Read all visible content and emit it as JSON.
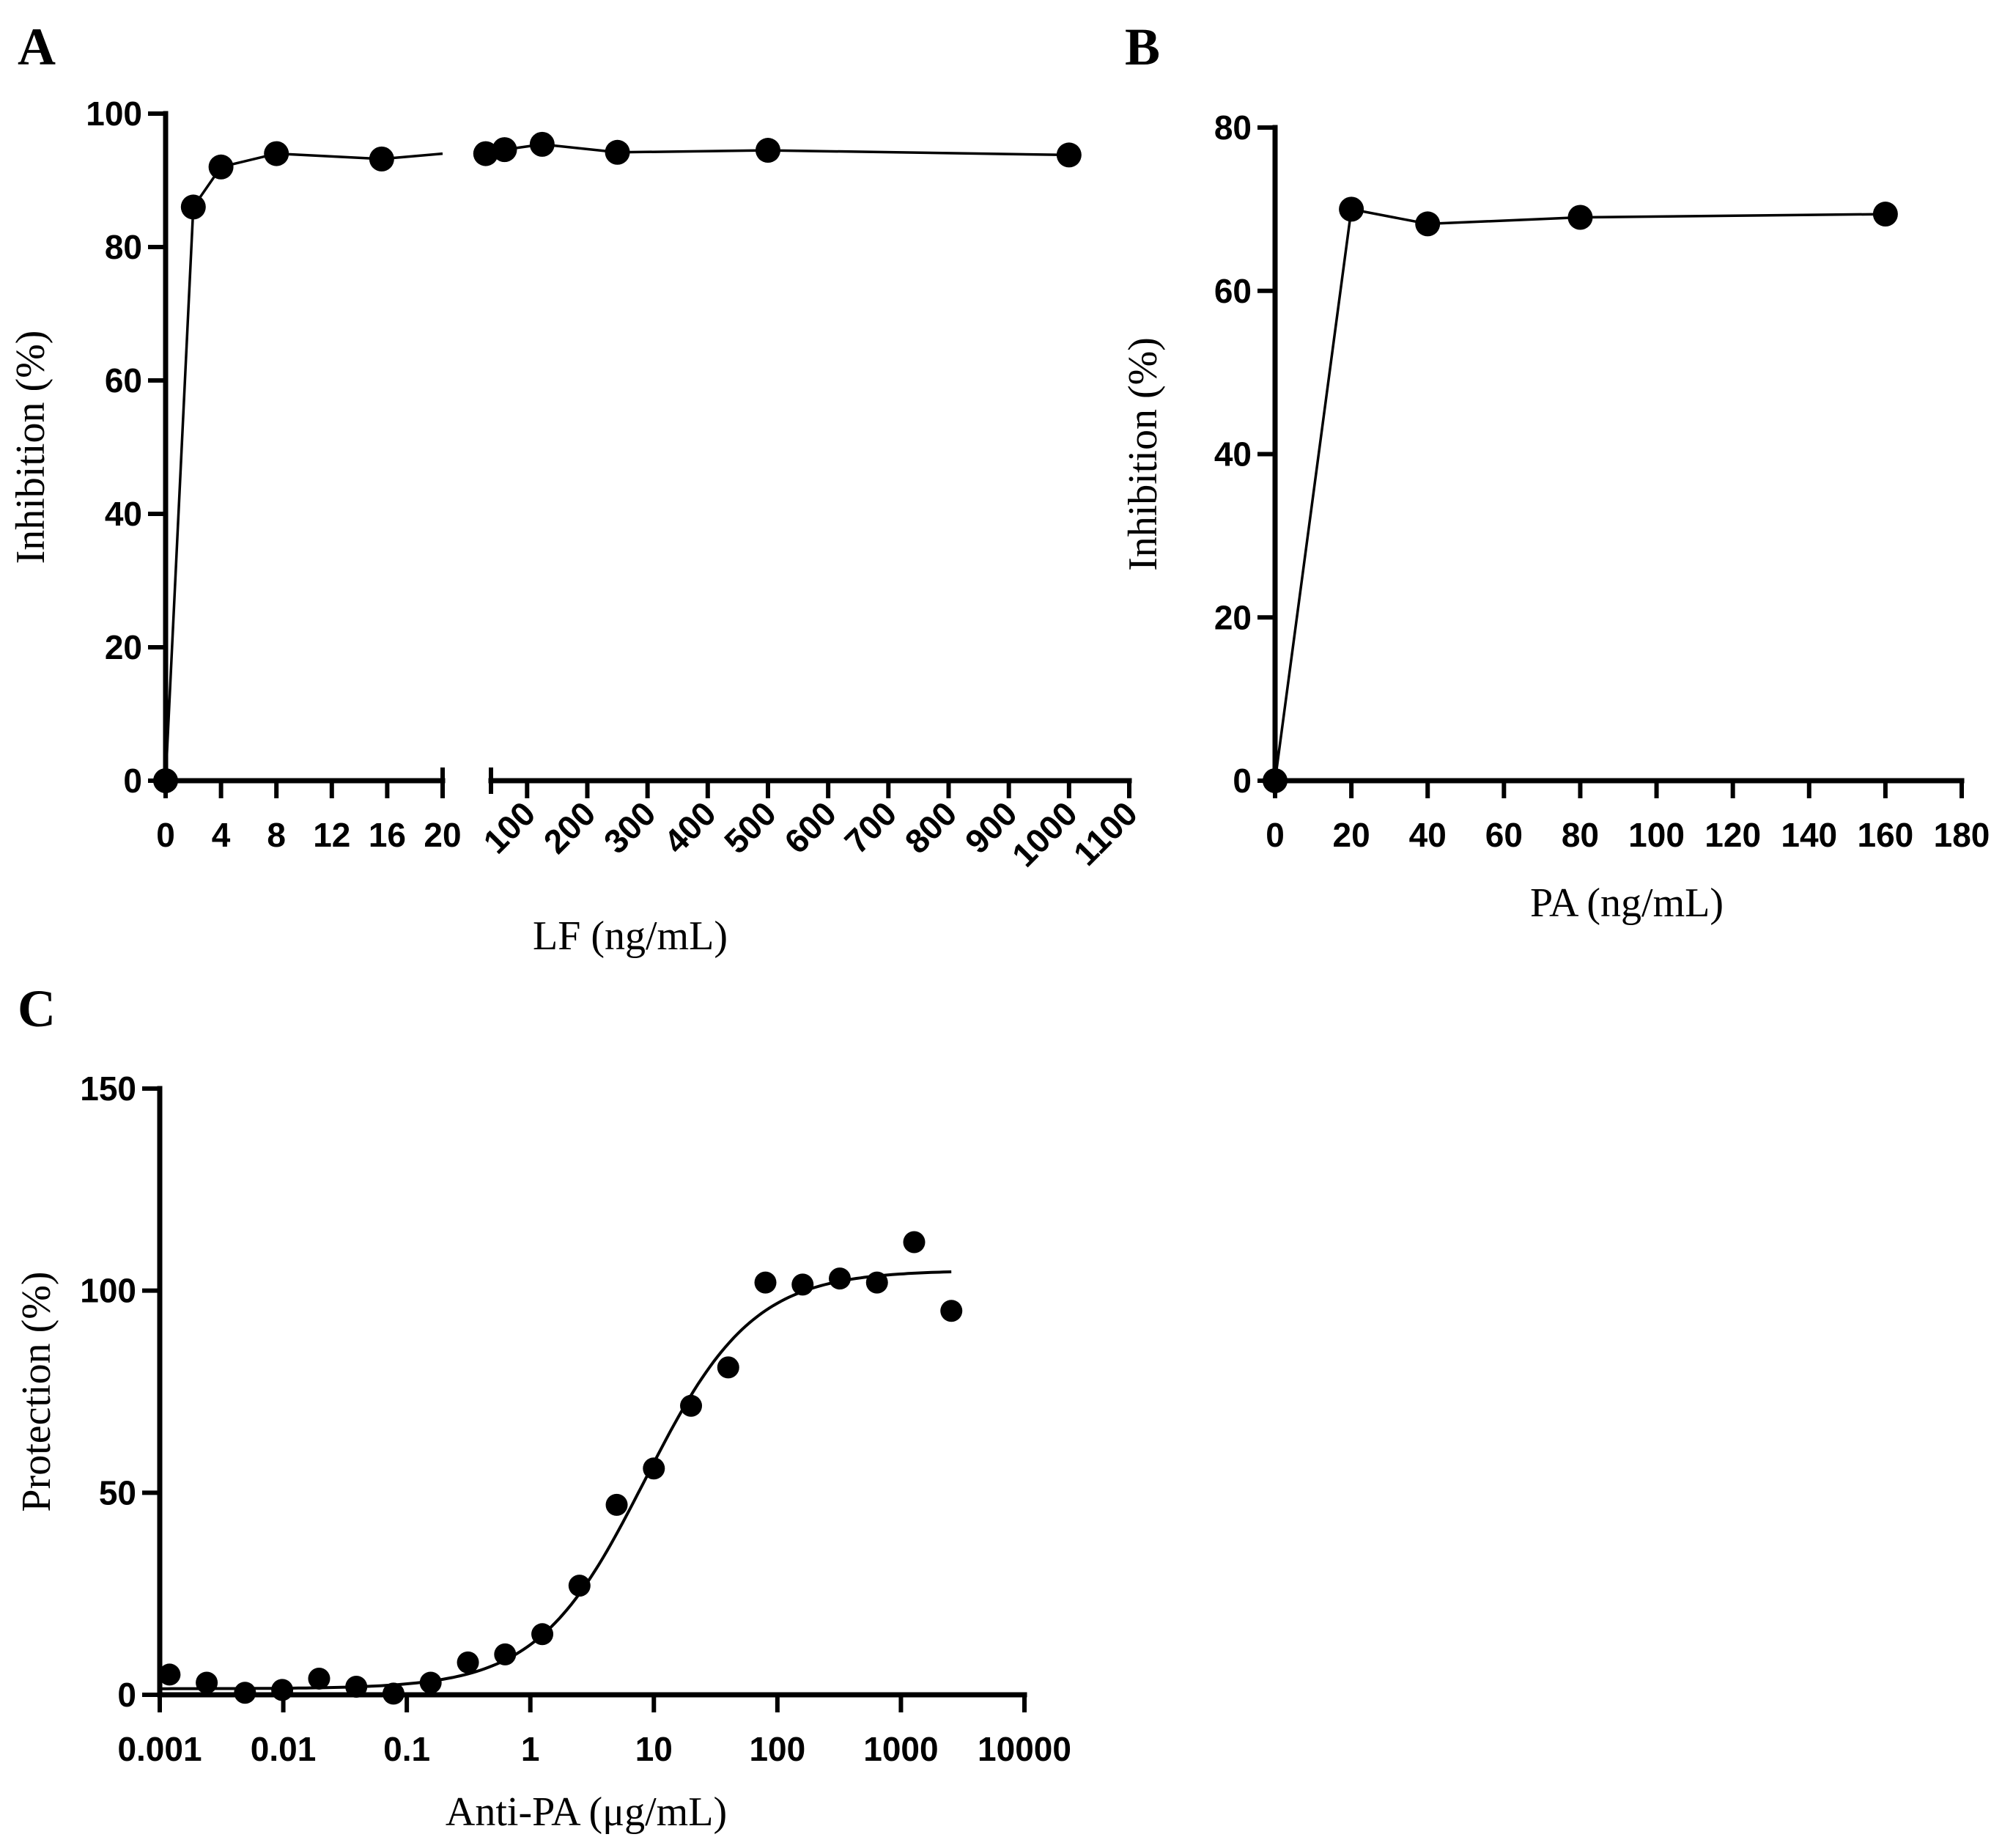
{
  "panel_labels": {
    "a": "A",
    "b": "B",
    "c": "C"
  },
  "chart_data": [
    {
      "panel": "A",
      "type": "line",
      "xlabel": "LF (ng/mL)",
      "ylabel": "Inhibition (%)",
      "ylim": [
        0,
        100
      ],
      "yticks": [
        "0",
        "20",
        "40",
        "60",
        "80",
        "100"
      ],
      "broken_x_axis": true,
      "segments": [
        {
          "xlim": [
            0,
            20
          ],
          "xticks": [
            "0",
            "4",
            "8",
            "12",
            "16",
            "20"
          ]
        },
        {
          "xlim": [
            40,
            1100
          ],
          "xticks": [
            "100",
            "200",
            "300",
            "400",
            "500",
            "600",
            "700",
            "800",
            "900",
            "1000",
            "1100"
          ]
        }
      ],
      "series": [
        {
          "points": [
            {
              "x": 0,
              "y": 0
            },
            {
              "x": 2,
              "y": 86
            },
            {
              "x": 4,
              "y": 92
            },
            {
              "x": 8,
              "y": 94
            },
            {
              "x": 15.6,
              "y": 93.2
            },
            {
              "x": 31.25,
              "y": 94
            },
            {
              "x": 62.5,
              "y": 94.6
            },
            {
              "x": 125,
              "y": 95.4
            },
            {
              "x": 250,
              "y": 94.2
            },
            {
              "x": 500,
              "y": 94.5
            },
            {
              "x": 1000,
              "y": 93.8
            }
          ]
        }
      ]
    },
    {
      "panel": "B",
      "type": "line",
      "xlabel": "PA (ng/mL)",
      "ylabel": "Inhibition (%)",
      "xlim": [
        0,
        180
      ],
      "ylim": [
        0,
        80
      ],
      "xticks": [
        "0",
        "20",
        "40",
        "60",
        "80",
        "100",
        "120",
        "140",
        "160",
        "180"
      ],
      "yticks": [
        "0",
        "20",
        "40",
        "60",
        "80"
      ],
      "series": [
        {
          "points": [
            {
              "x": 0,
              "y": 0
            },
            {
              "x": 20,
              "y": 70
            },
            {
              "x": 40,
              "y": 68.2
            },
            {
              "x": 80,
              "y": 69
            },
            {
              "x": 160,
              "y": 69.4
            }
          ]
        }
      ]
    },
    {
      "panel": "C",
      "type": "scatter",
      "xlabel": "Anti-PA (μg/mL)",
      "ylabel": "Protection (%)",
      "xscale": "log",
      "xlim": [
        0.001,
        10000
      ],
      "ylim": [
        0,
        150
      ],
      "xticks": [
        "0.001",
        "0.01",
        "0.1",
        "1",
        "10",
        "100",
        "1000",
        "10000"
      ],
      "yticks": [
        "0",
        "50",
        "100",
        "150"
      ],
      "series": [
        {
          "points": [
            {
              "x": 0.0012,
              "y": 5
            },
            {
              "x": 0.0024,
              "y": 3
            },
            {
              "x": 0.0049,
              "y": 0.5
            },
            {
              "x": 0.0098,
              "y": 1.2
            },
            {
              "x": 0.0195,
              "y": 4
            },
            {
              "x": 0.039,
              "y": 2
            },
            {
              "x": 0.078,
              "y": 0.3
            },
            {
              "x": 0.156,
              "y": 3
            },
            {
              "x": 0.3125,
              "y": 8
            },
            {
              "x": 0.625,
              "y": 10
            },
            {
              "x": 1.25,
              "y": 15
            },
            {
              "x": 2.5,
              "y": 27
            },
            {
              "x": 5,
              "y": 47
            },
            {
              "x": 10,
              "y": 56
            },
            {
              "x": 20,
              "y": 71.5
            },
            {
              "x": 40,
              "y": 81
            },
            {
              "x": 80,
              "y": 102
            },
            {
              "x": 160,
              "y": 101.5
            },
            {
              "x": 320,
              "y": 103
            },
            {
              "x": 640,
              "y": 102
            },
            {
              "x": 1280,
              "y": 112
            },
            {
              "x": 2560,
              "y": 95
            }
          ]
        }
      ],
      "fit": {
        "model": "four-parameter logistic",
        "bottom": 1.5,
        "top": 105,
        "ec50": 8.5,
        "hill": 1.0,
        "x_range": [
          0.001,
          2560
        ]
      }
    }
  ]
}
